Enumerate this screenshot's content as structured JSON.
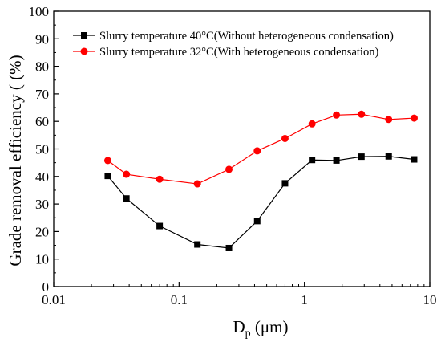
{
  "chart_data": {
    "type": "line",
    "title": "",
    "xlabel": {
      "main": "D",
      "sub": "p",
      "rest": " (μm)"
    },
    "ylabel": "Grade removal efficiency ( (%)",
    "xscale": "log",
    "xlim": [
      0.01,
      10
    ],
    "ylim": [
      0,
      100
    ],
    "x_ticks": [
      {
        "v": 0.01,
        "label": "0.01"
      },
      {
        "v": 0.1,
        "label": "0.1"
      },
      {
        "v": 1,
        "label": "1"
      },
      {
        "v": 10,
        "label": "10"
      }
    ],
    "y_ticks": [
      0,
      10,
      20,
      30,
      40,
      50,
      60,
      70,
      80,
      90,
      100
    ],
    "legend_position": "top-left",
    "series": [
      {
        "name": "Slurry temperature 40°C(Without heterogeneous condensation)",
        "color": "#000000",
        "marker": "square",
        "x": [
          0.027,
          0.038,
          0.07,
          0.14,
          0.25,
          0.42,
          0.7,
          1.15,
          1.8,
          2.85,
          4.7,
          7.5
        ],
        "y": [
          40.2,
          32.0,
          22.0,
          15.3,
          14.0,
          23.8,
          37.5,
          46.0,
          45.8,
          47.2,
          47.3,
          46.2
        ]
      },
      {
        "name": "Slurry temperature 32°C(With heterogeneous condensation)",
        "color": "#ff0000",
        "marker": "circle",
        "x": [
          0.027,
          0.038,
          0.07,
          0.14,
          0.25,
          0.42,
          0.7,
          1.15,
          1.8,
          2.85,
          4.7,
          7.5
        ],
        "y": [
          45.8,
          40.8,
          39.0,
          37.3,
          42.6,
          49.3,
          53.8,
          59.1,
          62.3,
          62.6,
          60.7,
          61.2
        ]
      }
    ]
  }
}
